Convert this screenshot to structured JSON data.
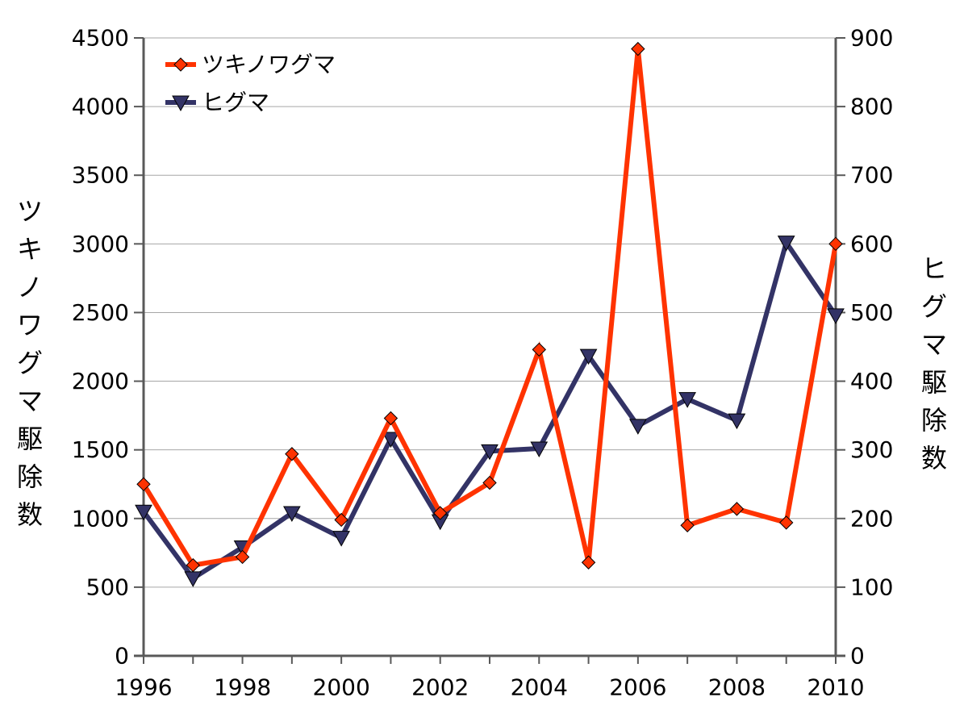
{
  "chart_data": {
    "type": "line",
    "title": "",
    "xlabel": "",
    "x": [
      1996,
      1997,
      1998,
      1999,
      2000,
      2001,
      2002,
      2003,
      2004,
      2005,
      2006,
      2007,
      2008,
      2009,
      2010
    ],
    "xlim": [
      1996,
      2010
    ],
    "x_tick_labels": [
      "1996",
      "1998",
      "2000",
      "2002",
      "2004",
      "2006",
      "2008",
      "2010"
    ],
    "y_left": {
      "label_chars": [
        "ツ",
        "キ",
        "ノ",
        "ワ",
        "グ",
        "マ",
        "駆",
        "除",
        "数"
      ],
      "lim": [
        0,
        4500
      ],
      "ticks": [
        "0",
        "500",
        "1000",
        "1500",
        "2000",
        "2500",
        "3000",
        "3500",
        "4000",
        "4500"
      ]
    },
    "y_right": {
      "label_chars": [
        "ヒ",
        "グ",
        "マ",
        "駆",
        "除",
        "数"
      ],
      "lim": [
        0,
        900
      ],
      "ticks": [
        "0",
        "100",
        "200",
        "300",
        "400",
        "500",
        "600",
        "700",
        "800",
        "900"
      ]
    },
    "grid": true,
    "legend_position": "top-left",
    "series": [
      {
        "name": "ツキノワグマ",
        "axis": "left",
        "marker": "diamond",
        "color": "#ff3300",
        "values": [
          1250,
          660,
          720,
          1470,
          990,
          1730,
          1040,
          1260,
          2230,
          680,
          4420,
          950,
          1070,
          970,
          3000
        ]
      },
      {
        "name": "ヒグマ",
        "axis": "right",
        "marker": "triangle-down",
        "color": "#333366",
        "values": [
          210,
          113,
          158,
          208,
          172,
          316,
          196,
          298,
          302,
          437,
          335,
          374,
          343,
          602,
          496
        ]
      }
    ]
  }
}
